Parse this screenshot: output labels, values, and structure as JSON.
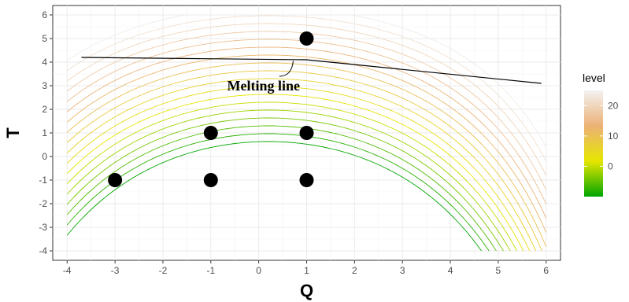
{
  "chart_data": {
    "type": "contour",
    "xlabel": "Q",
    "ylabel": "T",
    "xlim": [
      -4.3,
      6.3
    ],
    "ylim": [
      -4.4,
      6.4
    ],
    "x_ticks": [
      -4,
      -3,
      -2,
      -1,
      0,
      1,
      2,
      3,
      4,
      5,
      6
    ],
    "y_ticks": [
      -4,
      -3,
      -2,
      -1,
      0,
      1,
      2,
      3,
      4,
      5,
      6
    ],
    "grid": true,
    "background": "panel-border-light-grid",
    "contour_levels": [
      -10,
      -8,
      -6,
      -4,
      -2,
      0,
      2,
      4,
      6,
      8,
      10,
      12,
      14,
      16,
      18,
      20,
      22,
      24
    ],
    "points": [
      {
        "x": -3,
        "y": -1
      },
      {
        "x": -1,
        "y": -1
      },
      {
        "x": 1,
        "y": -1
      },
      {
        "x": -1,
        "y": 1
      },
      {
        "x": 1,
        "y": 1
      },
      {
        "x": 1,
        "y": 5
      }
    ],
    "melting_line": [
      {
        "x": -3.7,
        "y": 4.2
      },
      {
        "x": 1,
        "y": 4.1
      },
      {
        "x": 5.9,
        "y": 3.1
      }
    ],
    "annotation": {
      "text": "Melting line",
      "x": 0.1,
      "y": 3.0,
      "arrow_to_x": 0.72,
      "arrow_to_y": 4.05
    },
    "legend": {
      "title": "level",
      "position": "right",
      "labels": [
        "20",
        "10",
        "0"
      ],
      "label_values": [
        20,
        10,
        0
      ],
      "range": [
        -10,
        25
      ],
      "colors": [
        "#00a600",
        "#e6e600",
        "#ecb176",
        "#f2f2f2"
      ]
    }
  }
}
